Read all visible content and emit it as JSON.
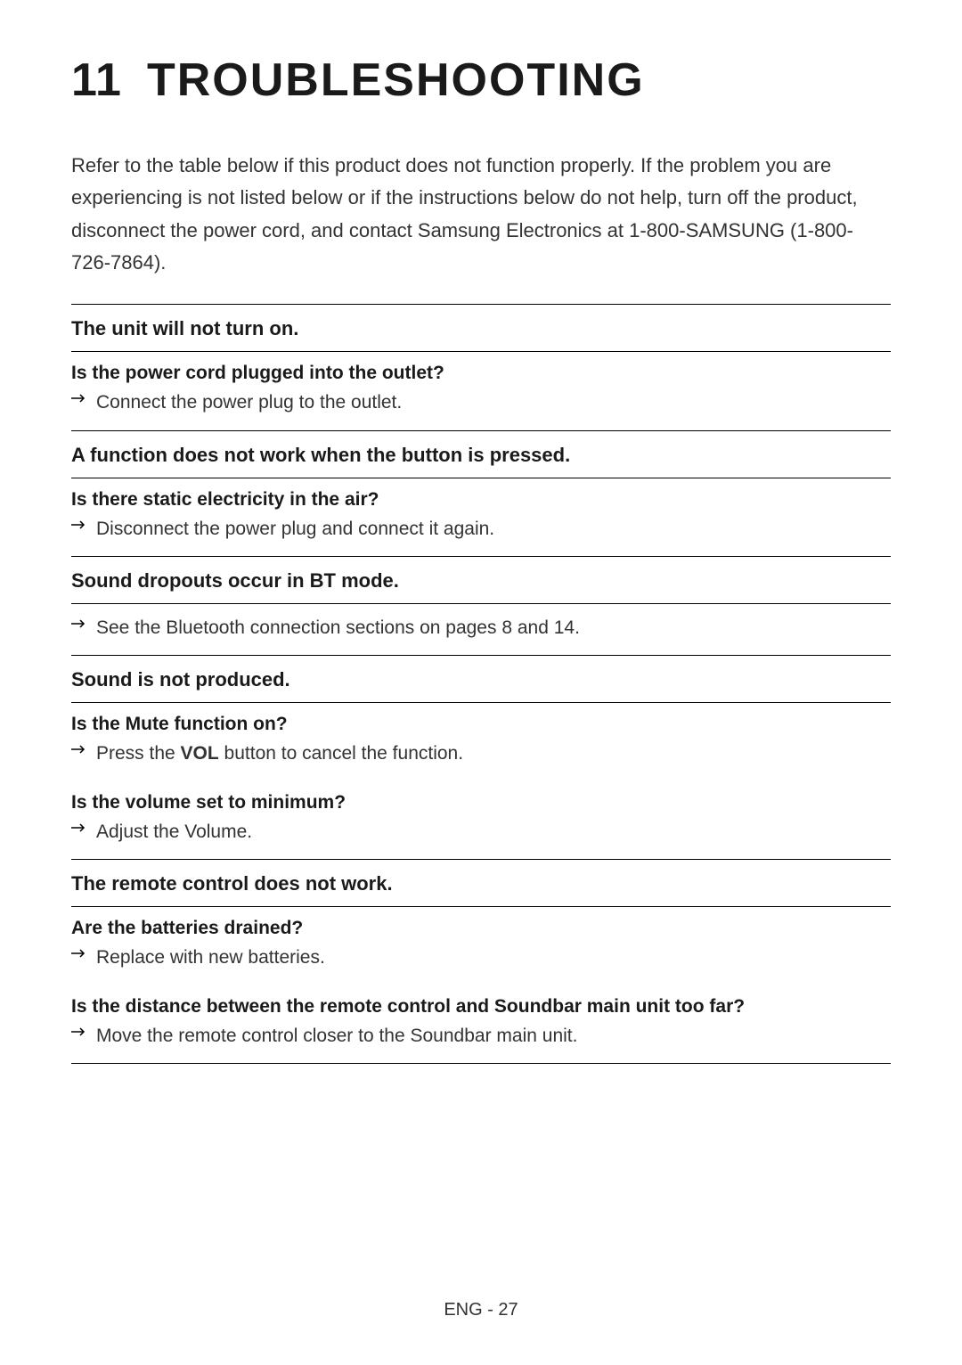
{
  "chapter": {
    "number": "11",
    "title": "TROUBLESHOOTING"
  },
  "intro": "Refer to the table below if this product does not function properly. If the problem you are experiencing is not listed below or if the instructions below do not help, turn off the product, disconnect the power cord, and contact Samsung Electronics at 1-800-SAMSUNG (1-800-726-7864).",
  "sections": [
    {
      "header": "The unit will not turn on.",
      "qas": [
        {
          "question": "Is the power cord plugged into the outlet?",
          "answer_prefix": "Connect the power plug to the outlet.",
          "answer_bold": "",
          "answer_suffix": ""
        }
      ]
    },
    {
      "header": "A function does not work when the button is pressed.",
      "qas": [
        {
          "question": "Is there static electricity in the air?",
          "answer_prefix": "Disconnect the power plug and connect it again.",
          "answer_bold": "",
          "answer_suffix": ""
        }
      ]
    },
    {
      "header": "Sound dropouts occur in BT mode.",
      "qas": [
        {
          "question": "",
          "answer_prefix": "See the Bluetooth connection sections on pages 8 and 14.",
          "answer_bold": "",
          "answer_suffix": ""
        }
      ]
    },
    {
      "header": "Sound is not produced.",
      "qas": [
        {
          "question": "Is the Mute function on?",
          "answer_prefix": "Press the ",
          "answer_bold": "VOL",
          "answer_suffix": " button to cancel the function."
        },
        {
          "question": "Is the volume set to minimum?",
          "answer_prefix": "Adjust the Volume.",
          "answer_bold": "",
          "answer_suffix": ""
        }
      ]
    },
    {
      "header": "The remote control does not work.",
      "qas": [
        {
          "question": "Are the batteries drained?",
          "answer_prefix": "Replace with new batteries.",
          "answer_bold": "",
          "answer_suffix": ""
        },
        {
          "question": "Is the distance between the remote control and Soundbar main unit too far?",
          "answer_prefix": "Move the remote control closer to the Soundbar main unit.",
          "answer_bold": "",
          "answer_suffix": ""
        }
      ]
    }
  ],
  "footer": "ENG - 27",
  "colors": {
    "text": "#1a1a1a",
    "body": "#333333",
    "bg": "#ffffff",
    "border": "#000000"
  },
  "typography": {
    "heading_fontsize": 52,
    "section_header_fontsize": 22,
    "body_fontsize": 22,
    "question_fontsize": 21
  }
}
